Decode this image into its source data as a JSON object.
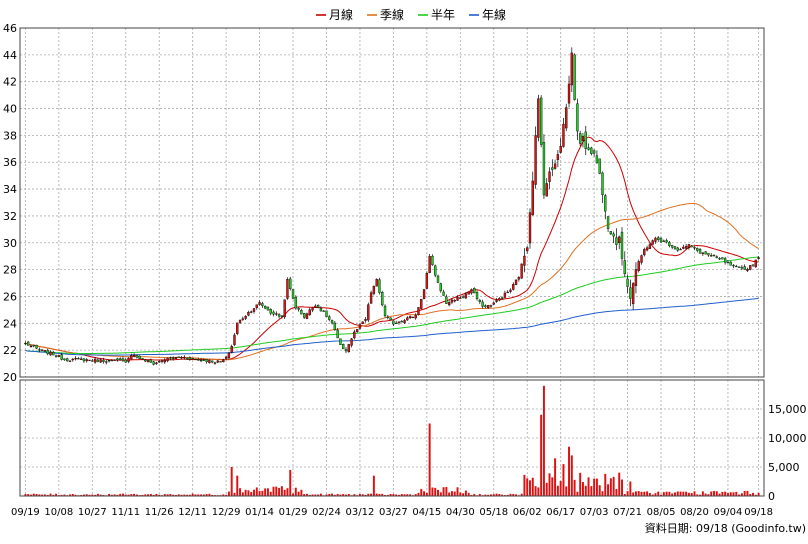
{
  "chart_data": {
    "type": "candlestick",
    "legend": [
      {
        "name": "月線",
        "color": "#cc0000"
      },
      {
        "name": "季線",
        "color": "#e0701f"
      },
      {
        "name": "半年",
        "color": "#1fcc1f"
      },
      {
        "name": "年線",
        "color": "#1f5fcc"
      }
    ],
    "price_axis": {
      "min": 20,
      "max": 46,
      "ticks": [
        20,
        22,
        24,
        26,
        28,
        30,
        32,
        34,
        36,
        38,
        40,
        42,
        44,
        46
      ]
    },
    "volume_axis": {
      "min": 0,
      "max": 20000,
      "ticks": [
        0,
        5000,
        10000,
        15000
      ],
      "tick_labels": [
        "0",
        "5,000",
        "10,000",
        "15,000"
      ]
    },
    "x_labels": [
      "09/19",
      "10/08",
      "10/27",
      "11/11",
      "11/26",
      "12/11",
      "12/29",
      "01/14",
      "01/29",
      "02/24",
      "03/12",
      "03/27",
      "04/15",
      "04/30",
      "05/18",
      "06/02",
      "06/17",
      "07/03",
      "07/21",
      "08/05",
      "08/20",
      "09/04",
      "09/18"
    ],
    "x_label_index": [
      0,
      12,
      24,
      36,
      48,
      60,
      72,
      84,
      96,
      108,
      120,
      132,
      144,
      156,
      168,
      180,
      192,
      204,
      216,
      228,
      240,
      252,
      263
    ],
    "n_days": 264,
    "anchors": [
      [
        0,
        22.5
      ],
      [
        5,
        22.0
      ],
      [
        10,
        21.7
      ],
      [
        14,
        21.3
      ],
      [
        20,
        21.3
      ],
      [
        30,
        21.2
      ],
      [
        36,
        21.2
      ],
      [
        38,
        21.7
      ],
      [
        42,
        21.3
      ],
      [
        46,
        21.0
      ],
      [
        50,
        21.3
      ],
      [
        56,
        21.5
      ],
      [
        62,
        21.3
      ],
      [
        66,
        21.2
      ],
      [
        70,
        21.1
      ],
      [
        72,
        21.4
      ],
      [
        74,
        22.3
      ],
      [
        76,
        24.0
      ],
      [
        80,
        24.8
      ],
      [
        84,
        25.5
      ],
      [
        88,
        24.8
      ],
      [
        92,
        24.5
      ],
      [
        94,
        27.2
      ],
      [
        97,
        25.2
      ],
      [
        100,
        24.5
      ],
      [
        104,
        25.4
      ],
      [
        107,
        24.8
      ],
      [
        110,
        24.0
      ],
      [
        113,
        22.3
      ],
      [
        115,
        22.0
      ],
      [
        118,
        23.3
      ],
      [
        122,
        24.3
      ],
      [
        124,
        26.3
      ],
      [
        126,
        27.2
      ],
      [
        129,
        24.5
      ],
      [
        132,
        24.0
      ],
      [
        136,
        24.3
      ],
      [
        140,
        24.6
      ],
      [
        143,
        26.5
      ],
      [
        145,
        28.9
      ],
      [
        148,
        27.0
      ],
      [
        151,
        25.5
      ],
      [
        154,
        25.8
      ],
      [
        157,
        26.0
      ],
      [
        160,
        26.5
      ],
      [
        163,
        25.5
      ],
      [
        165,
        25.2
      ],
      [
        168,
        25.5
      ],
      [
        171,
        26.0
      ],
      [
        174,
        26.5
      ],
      [
        177,
        27.5
      ],
      [
        180,
        30.0
      ],
      [
        182,
        35.0
      ],
      [
        184,
        40.5
      ],
      [
        186,
        34.0
      ],
      [
        189,
        35.5
      ],
      [
        192,
        37.5
      ],
      [
        194,
        40.0
      ],
      [
        196,
        44.0
      ],
      [
        198,
        38.0
      ],
      [
        200,
        37.5
      ],
      [
        203,
        37.0
      ],
      [
        205,
        36.0
      ],
      [
        207,
        34.0
      ],
      [
        209,
        31.5
      ],
      [
        211,
        30.5
      ],
      [
        213,
        30.0
      ],
      [
        215,
        28.0
      ],
      [
        217,
        26.0
      ],
      [
        219,
        28.0
      ],
      [
        222,
        29.5
      ],
      [
        226,
        30.3
      ],
      [
        230,
        30.0
      ],
      [
        234,
        29.5
      ],
      [
        238,
        29.8
      ],
      [
        242,
        29.3
      ],
      [
        246,
        29.0
      ],
      [
        250,
        28.7
      ],
      [
        254,
        28.2
      ],
      [
        258,
        28.0
      ],
      [
        261,
        28.4
      ],
      [
        263,
        29.0
      ]
    ],
    "vol_spikes": [
      [
        74,
        5000
      ],
      [
        76,
        3500
      ],
      [
        95,
        4500
      ],
      [
        125,
        3500
      ],
      [
        145,
        12500
      ],
      [
        185,
        14000
      ],
      [
        186,
        19000
      ],
      [
        190,
        6500
      ],
      [
        193,
        5500
      ],
      [
        195,
        8500
      ],
      [
        196,
        7000
      ],
      [
        199,
        4000
      ],
      [
        204,
        3000
      ],
      [
        217,
        2500
      ]
    ],
    "ma_colors": {
      "ma20": "#cc0000",
      "ma60": "#e0701f",
      "ma120": "#1fcc1f",
      "ma240": "#1f5fcc"
    },
    "up_color": "#dd1111",
    "down_color": "#22cc22",
    "footer_label": "資料日期: 09/18 (Goodinfo.tw)"
  }
}
